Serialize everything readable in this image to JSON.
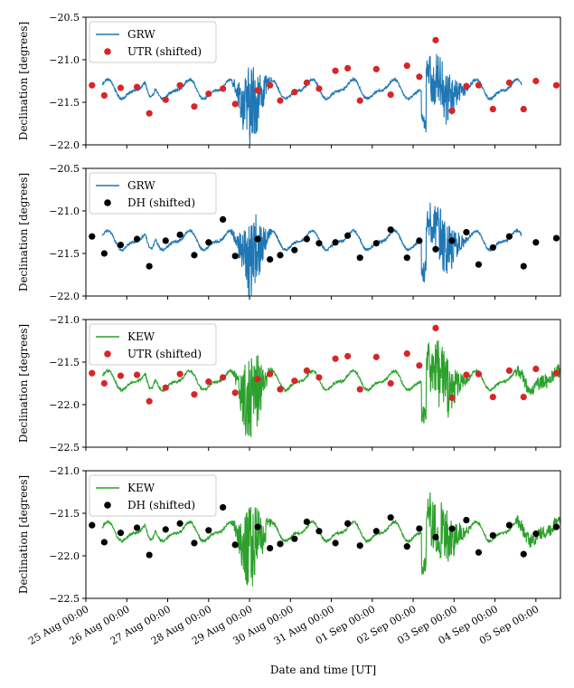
{
  "figure": {
    "xlabel": "Date and time [UT]",
    "xtick_labels": [
      "25 Aug 00:00",
      "26 Aug 00:00",
      "27 Aug 00:00",
      "28 Aug 00:00",
      "29 Aug 00:00",
      "30 Aug 00:00",
      "31 Aug 00:00",
      "01 Sep 00:00",
      "02 Sep 00:00",
      "03 Sep 00:00",
      "04 Sep 00:00",
      "05 Sep 00:00"
    ]
  },
  "chart_data": [
    {
      "type": "line+scatter",
      "ylabel": "Declination [degrees]",
      "ylim": [
        -22.0,
        -20.5
      ],
      "yticks": [
        -22.0,
        -21.5,
        -21.0,
        -20.5
      ],
      "ytick_labels": [
        "−22.0",
        "−21.5",
        "−21.0",
        "−20.5"
      ],
      "xlim": [
        0,
        11.6
      ],
      "line": {
        "name": "GRW",
        "color": "#1f77b4",
        "kind": "GRW",
        "baseline": -21.35,
        "storm_amp": 0.45
      },
      "scatter": {
        "name": "UTR (shifted)",
        "color": "#d62728",
        "x": [
          0.15,
          0.45,
          0.85,
          1.25,
          1.55,
          1.95,
          2.3,
          2.65,
          3.0,
          3.35,
          3.65,
          4.2,
          4.5,
          4.75,
          5.1,
          5.4,
          5.7,
          6.1,
          6.4,
          6.7,
          7.1,
          7.45,
          7.85,
          8.15,
          8.55,
          8.95,
          9.3,
          9.6,
          9.95,
          10.35,
          10.7,
          11.0,
          11.5
        ],
        "y": [
          -21.3,
          -21.42,
          -21.33,
          -21.32,
          -21.63,
          -21.47,
          -21.3,
          -21.55,
          -21.4,
          -21.34,
          -21.52,
          -21.36,
          -21.3,
          -21.48,
          -21.38,
          -21.27,
          -21.34,
          -21.13,
          -21.1,
          -21.48,
          -21.11,
          -21.41,
          -21.07,
          -21.2,
          -20.77,
          -21.6,
          -21.31,
          -21.3,
          -21.58,
          -21.27,
          -21.58,
          -21.25,
          -21.3
        ]
      }
    },
    {
      "type": "line+scatter",
      "ylabel": "Declination [degrees]",
      "ylim": [
        -22.0,
        -20.5
      ],
      "yticks": [
        -22.0,
        -21.5,
        -21.0,
        -20.5
      ],
      "ytick_labels": [
        "−22.0",
        "−21.5",
        "−21.0",
        "−20.5"
      ],
      "xlim": [
        0,
        11.6
      ],
      "line": {
        "name": "GRW",
        "color": "#1f77b4",
        "kind": "GRW",
        "baseline": -21.35,
        "storm_amp": 0.45
      },
      "scatter": {
        "name": "DH (shifted)",
        "color": "#000000",
        "x": [
          0.15,
          0.45,
          0.85,
          1.25,
          1.55,
          1.95,
          2.3,
          2.65,
          3.0,
          3.35,
          3.65,
          4.2,
          4.5,
          4.75,
          5.1,
          5.4,
          5.7,
          6.1,
          6.4,
          6.7,
          7.1,
          7.45,
          7.85,
          8.15,
          8.55,
          8.95,
          9.3,
          9.6,
          9.95,
          10.35,
          10.7,
          11.0,
          11.5
        ],
        "y": [
          -21.3,
          -21.5,
          -21.4,
          -21.33,
          -21.65,
          -21.35,
          -21.28,
          -21.52,
          -21.37,
          -21.1,
          -21.53,
          -21.33,
          -21.57,
          -21.52,
          -21.46,
          -21.33,
          -21.38,
          -21.37,
          -21.29,
          -21.55,
          -21.38,
          -21.22,
          -21.55,
          -21.35,
          -21.45,
          -21.35,
          -21.25,
          -21.63,
          -21.43,
          -21.3,
          -21.65,
          -21.37,
          -21.32
        ]
      }
    },
    {
      "type": "line+scatter",
      "ylabel": "Declination [degrees]",
      "ylim": [
        -22.5,
        -21.0
      ],
      "yticks": [
        -22.5,
        -22.0,
        -21.5,
        -21.0
      ],
      "ytick_labels": [
        "−22.5",
        "−22.0",
        "−21.5",
        "−21.0"
      ],
      "xlim": [
        0,
        11.6
      ],
      "line": {
        "name": "KEW",
        "color": "#2ca02c",
        "kind": "KEW",
        "baseline": -21.72,
        "storm_amp": 0.5
      },
      "scatter": {
        "name": "UTR (shifted)",
        "color": "#d62728",
        "x": [
          0.15,
          0.45,
          0.85,
          1.25,
          1.55,
          1.95,
          2.3,
          2.65,
          3.0,
          3.35,
          3.65,
          4.2,
          4.5,
          4.75,
          5.1,
          5.4,
          5.7,
          6.1,
          6.4,
          6.7,
          7.1,
          7.45,
          7.85,
          8.15,
          8.55,
          8.95,
          9.3,
          9.6,
          9.95,
          10.35,
          10.7,
          11.0,
          11.5
        ],
        "y": [
          -21.63,
          -21.75,
          -21.66,
          -21.65,
          -21.96,
          -21.8,
          -21.64,
          -21.88,
          -21.73,
          -21.68,
          -21.86,
          -21.7,
          -21.64,
          -21.82,
          -21.72,
          -21.6,
          -21.68,
          -21.46,
          -21.43,
          -21.82,
          -21.44,
          -21.75,
          -21.4,
          -21.54,
          -21.1,
          -21.92,
          -21.65,
          -21.64,
          -21.91,
          -21.6,
          -21.91,
          -21.58,
          -21.63
        ]
      }
    },
    {
      "type": "line+scatter",
      "ylabel": "Declination [degrees]",
      "ylim": [
        -22.5,
        -21.0
      ],
      "yticks": [
        -22.5,
        -22.0,
        -21.5,
        -21.0
      ],
      "ytick_labels": [
        "−22.5",
        "−22.0",
        "−21.5",
        "−21.0"
      ],
      "xlim": [
        0,
        11.6
      ],
      "line": {
        "name": "KEW",
        "color": "#2ca02c",
        "kind": "KEW",
        "baseline": -21.72,
        "storm_amp": 0.5
      },
      "scatter": {
        "name": "DH (shifted)",
        "color": "#000000",
        "x": [
          0.15,
          0.45,
          0.85,
          1.25,
          1.55,
          1.95,
          2.3,
          2.65,
          3.0,
          3.35,
          3.65,
          4.2,
          4.5,
          4.75,
          5.1,
          5.4,
          5.7,
          6.1,
          6.4,
          6.7,
          7.1,
          7.45,
          7.85,
          8.15,
          8.55,
          8.95,
          9.3,
          9.6,
          9.95,
          10.35,
          10.7,
          11.0,
          11.5
        ],
        "y": [
          -21.64,
          -21.84,
          -21.73,
          -21.67,
          -21.99,
          -21.69,
          -21.62,
          -21.85,
          -21.7,
          -21.43,
          -21.87,
          -21.66,
          -21.91,
          -21.86,
          -21.8,
          -21.6,
          -21.71,
          -21.85,
          -21.62,
          -21.88,
          -21.71,
          -21.55,
          -21.89,
          -21.68,
          -21.78,
          -21.68,
          -21.58,
          -21.96,
          -21.76,
          -21.64,
          -21.98,
          -21.74,
          -21.66
        ]
      }
    }
  ]
}
